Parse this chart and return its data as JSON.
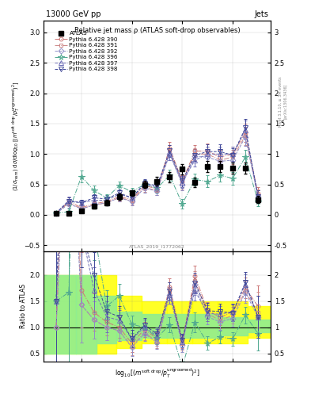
{
  "title_top": "13000 GeV pp",
  "title_right": "Jets",
  "plot_title": "Relative jet mass ρ (ATLAS soft-drop observables)",
  "watermark": "ATLAS_2019_I1772062",
  "rivet_text": "Rivet 3.1.10, ≥ 3M events",
  "arxiv_text": "[arXiv:1306.3436]",
  "xlim": [
    -4.75,
    -0.25
  ],
  "ylim_main": [
    -0.6,
    3.2
  ],
  "ylim_ratio": [
    0.35,
    2.45
  ],
  "x_ticks": [
    -4,
    -3,
    -2,
    -1
  ],
  "yticks_main": [
    -0.5,
    0.0,
    0.5,
    1.0,
    1.5,
    2.0,
    2.5,
    3.0
  ],
  "yticks_ratio": [
    0.5,
    1.0,
    1.5,
    2.0
  ],
  "x_data": [
    -4.5,
    -4.25,
    -4.0,
    -3.75,
    -3.5,
    -3.25,
    -3.0,
    -2.75,
    -2.5,
    -2.25,
    -2.0,
    -1.75,
    -1.5,
    -1.25,
    -1.0,
    -0.75,
    -0.5
  ],
  "atlas_y": [
    0.02,
    0.03,
    0.07,
    0.14,
    0.2,
    0.3,
    0.36,
    0.5,
    0.55,
    0.62,
    0.75,
    0.53,
    0.79,
    0.8,
    0.77,
    0.77,
    0.25
  ],
  "atlas_yerr": [
    0.01,
    0.02,
    0.03,
    0.04,
    0.05,
    0.05,
    0.05,
    0.06,
    0.07,
    0.08,
    0.09,
    0.08,
    0.09,
    0.09,
    0.09,
    0.09,
    0.06
  ],
  "band_yellow_edges": [
    -4.75,
    -4.1,
    -3.7,
    -3.3,
    -2.8,
    -2.3,
    -1.8,
    -1.3,
    -0.7,
    -0.25
  ],
  "band_yellow_lo": [
    0.5,
    0.5,
    0.5,
    0.6,
    0.7,
    0.7,
    0.7,
    0.7,
    0.8,
    0.8
  ],
  "band_yellow_hi": [
    2.0,
    2.0,
    2.0,
    1.6,
    1.5,
    1.5,
    1.5,
    1.5,
    1.4,
    1.4
  ],
  "band_green_edges": [
    -4.75,
    -4.1,
    -3.7,
    -3.3,
    -2.8,
    -2.3,
    -1.8,
    -1.3,
    -0.7,
    -0.25
  ],
  "band_green_lo": [
    0.5,
    0.5,
    0.7,
    0.75,
    0.8,
    0.8,
    0.8,
    0.85,
    0.9,
    0.9
  ],
  "band_green_hi": [
    2.0,
    2.0,
    1.6,
    1.3,
    1.25,
    1.25,
    1.25,
    1.2,
    1.15,
    1.15
  ],
  "series": [
    {
      "label": "Pythia 6.428 390",
      "color": "#cc7777",
      "marker": "o",
      "markersize": 3.5,
      "linestyle": "-.",
      "y": [
        0.02,
        0.22,
        0.12,
        0.18,
        0.22,
        0.3,
        0.25,
        0.48,
        0.43,
        1.1,
        0.55,
        1.05,
        1.05,
        0.95,
        1.0,
        1.35,
        0.35
      ],
      "yerr": [
        0.03,
        0.06,
        0.05,
        0.05,
        0.05,
        0.06,
        0.06,
        0.07,
        0.07,
        0.1,
        0.1,
        0.1,
        0.12,
        0.12,
        0.12,
        0.15,
        0.1
      ]
    },
    {
      "label": "Pythia 6.428 391",
      "color": "#cc8888",
      "marker": "s",
      "markersize": 3.5,
      "linestyle": "-.",
      "y": [
        0.02,
        0.2,
        0.1,
        0.16,
        0.2,
        0.28,
        0.23,
        0.45,
        0.4,
        1.05,
        0.52,
        1.0,
        1.0,
        0.9,
        0.95,
        1.3,
        0.32
      ],
      "yerr": [
        0.03,
        0.06,
        0.05,
        0.05,
        0.05,
        0.06,
        0.06,
        0.07,
        0.07,
        0.1,
        0.1,
        0.1,
        0.12,
        0.12,
        0.12,
        0.15,
        0.1
      ]
    },
    {
      "label": "Pythia 6.428 392",
      "color": "#9090c8",
      "marker": "D",
      "markersize": 3.5,
      "linestyle": "--",
      "y": [
        0.02,
        0.18,
        0.1,
        0.16,
        0.2,
        0.28,
        0.22,
        0.44,
        0.39,
        1.0,
        0.5,
        0.96,
        0.95,
        0.88,
        0.9,
        1.28,
        0.3
      ],
      "yerr": [
        0.03,
        0.06,
        0.05,
        0.05,
        0.05,
        0.06,
        0.06,
        0.07,
        0.07,
        0.1,
        0.1,
        0.1,
        0.12,
        0.12,
        0.12,
        0.15,
        0.1
      ]
    },
    {
      "label": "Pythia 6.428 396",
      "color": "#50a890",
      "marker": "*",
      "markersize": 5.5,
      "linestyle": "-.",
      "y": [
        0.03,
        0.05,
        0.63,
        0.4,
        0.28,
        0.48,
        0.38,
        0.5,
        0.44,
        0.65,
        0.18,
        0.58,
        0.55,
        0.65,
        0.6,
        0.95,
        0.22
      ],
      "yerr": [
        0.03,
        0.05,
        0.1,
        0.08,
        0.06,
        0.07,
        0.06,
        0.07,
        0.07,
        0.09,
        0.08,
        0.1,
        0.1,
        0.1,
        0.1,
        0.12,
        0.08
      ]
    },
    {
      "label": "Pythia 6.428 397",
      "color": "#7070b8",
      "marker": "^",
      "markersize": 4.5,
      "linestyle": "--",
      "y": [
        0.03,
        0.24,
        0.2,
        0.24,
        0.24,
        0.34,
        0.28,
        0.5,
        0.46,
        1.0,
        0.54,
        0.9,
        1.0,
        1.0,
        1.0,
        1.4,
        0.3
      ],
      "yerr": [
        0.03,
        0.06,
        0.05,
        0.06,
        0.06,
        0.06,
        0.06,
        0.07,
        0.07,
        0.1,
        0.1,
        0.1,
        0.12,
        0.12,
        0.12,
        0.15,
        0.1
      ]
    },
    {
      "label": "Pythia 6.428 398",
      "color": "#404898",
      "marker": "v",
      "markersize": 4.5,
      "linestyle": "--",
      "y": [
        0.03,
        0.22,
        0.2,
        0.28,
        0.26,
        0.36,
        0.28,
        0.52,
        0.48,
        1.05,
        0.56,
        0.98,
        1.04,
        1.04,
        0.98,
        1.43,
        0.3
      ],
      "yerr": [
        0.03,
        0.06,
        0.05,
        0.06,
        0.06,
        0.06,
        0.06,
        0.07,
        0.07,
        0.1,
        0.1,
        0.1,
        0.12,
        0.12,
        0.12,
        0.15,
        0.1
      ]
    }
  ]
}
